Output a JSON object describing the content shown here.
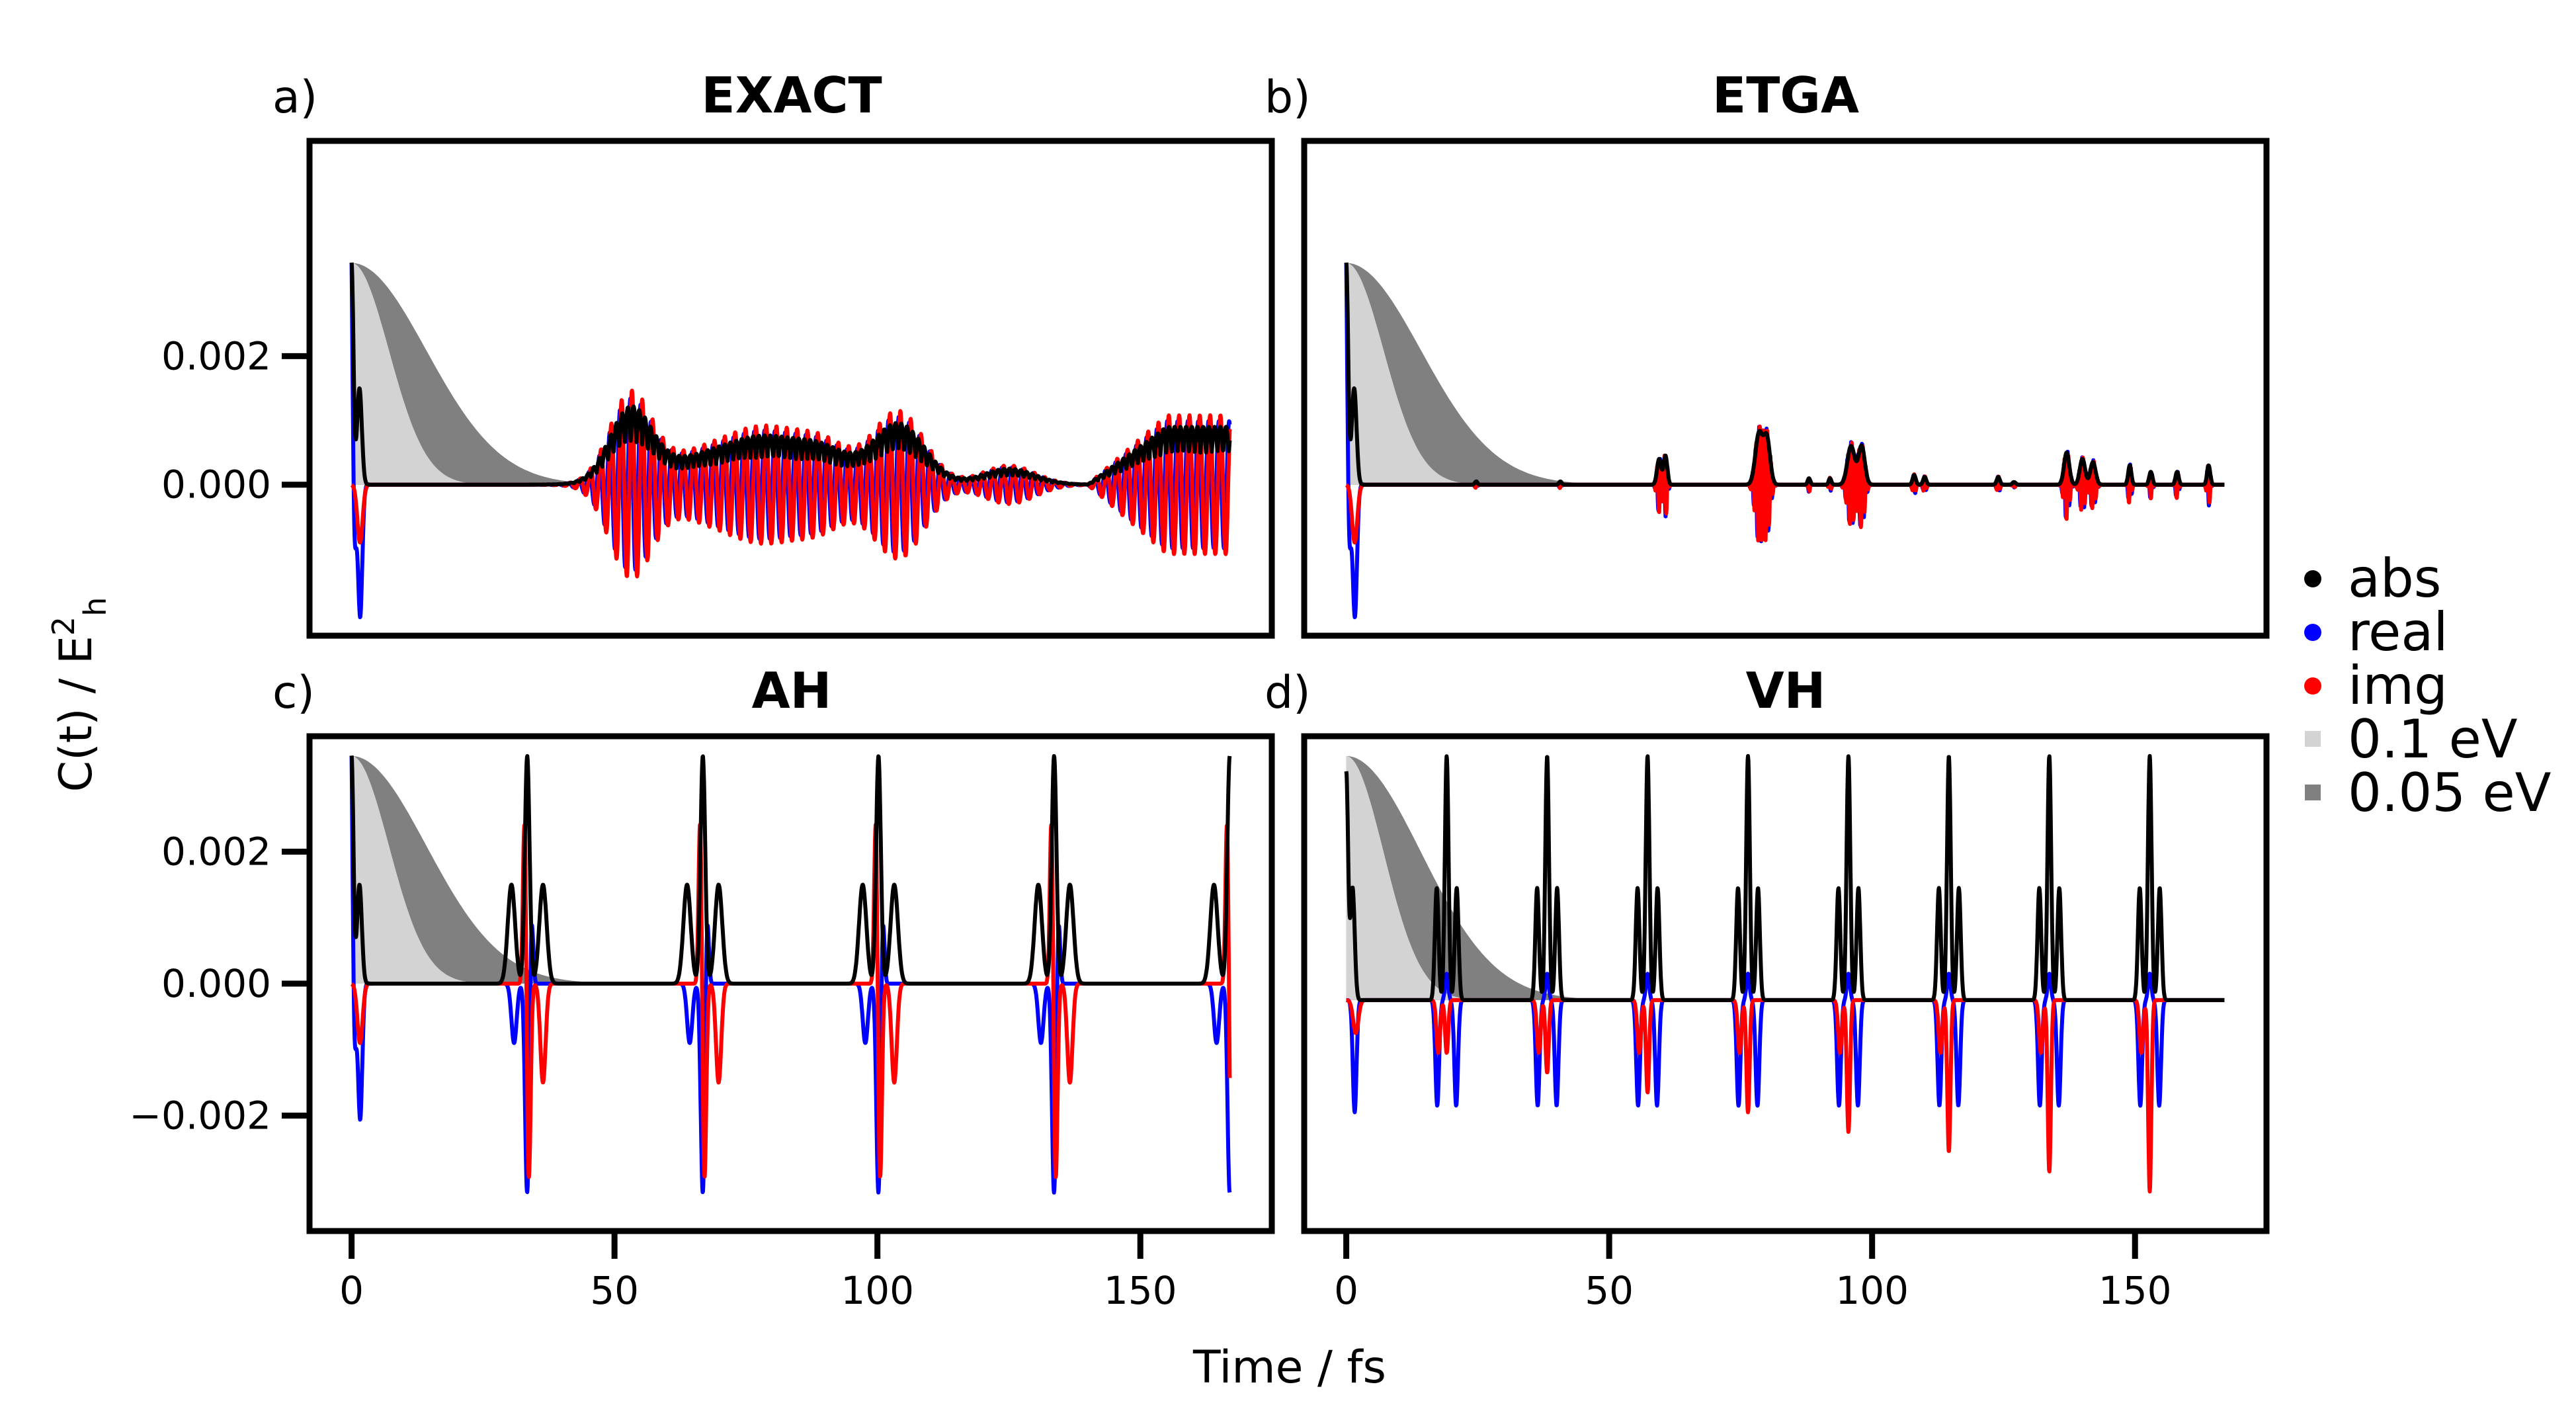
{
  "figure": {
    "ylabel": "C(t) / E",
    "ylabel_sup": "2",
    "ylabel_sub": "h",
    "xlabel": "Time / fs"
  },
  "legend": [
    {
      "label": "abs",
      "color": "#000000",
      "marker": "dot"
    },
    {
      "label": "real",
      "color": "#0000ff",
      "marker": "dot"
    },
    {
      "label": "img",
      "color": "#ff0000",
      "marker": "dot"
    },
    {
      "label": "0.1 eV",
      "color": "#d3d3d3",
      "marker": "square"
    },
    {
      "label": "0.05 eV",
      "color": "#808080",
      "marker": "square"
    }
  ],
  "chart_data": [
    {
      "type": "line",
      "panel": "a)",
      "title": "EXACT",
      "xlim": [
        -8,
        175
      ],
      "ylim": [
        -0.00235,
        0.00535
      ],
      "xticks": [
        0,
        50,
        100,
        150
      ],
      "yticks": [
        0.002,
        0.0
      ],
      "ytick_labels": [
        "0.002",
        "0.000"
      ],
      "kind": "exact"
    },
    {
      "type": "line",
      "panel": "b)",
      "title": "ETGA",
      "xlim": [
        -8,
        175
      ],
      "ylim": [
        -0.00235,
        0.00535
      ],
      "xticks": [],
      "yticks": [],
      "kind": "etga"
    },
    {
      "type": "line",
      "panel": "c)",
      "title": "AH",
      "xlim": [
        -8,
        175
      ],
      "ylim": [
        -0.00375,
        0.00375
      ],
      "xticks": [
        0,
        50,
        100,
        150
      ],
      "xtick_labels": [
        "0",
        "50",
        "100",
        "150"
      ],
      "yticks": [
        0.002,
        0.0,
        -0.002
      ],
      "ytick_labels": [
        "0.002",
        "0.000",
        "−0.002"
      ],
      "kind": "ah",
      "recurrence_times_fs": [
        0,
        33.4,
        66.8,
        100.2,
        133.6,
        167
      ]
    },
    {
      "type": "line",
      "panel": "d)",
      "title": "VH",
      "xlim": [
        -8,
        175
      ],
      "ylim": [
        -0.00375,
        0.00375
      ],
      "xticks": [
        0,
        50,
        100,
        150
      ],
      "xtick_labels": [
        "0",
        "50",
        "100",
        "150"
      ],
      "yticks": [],
      "kind": "vh",
      "recurrence_times_fs": [
        0,
        19.1,
        38.2,
        57.3,
        76.4,
        95.5,
        114.6,
        133.7,
        152.8
      ]
    }
  ]
}
